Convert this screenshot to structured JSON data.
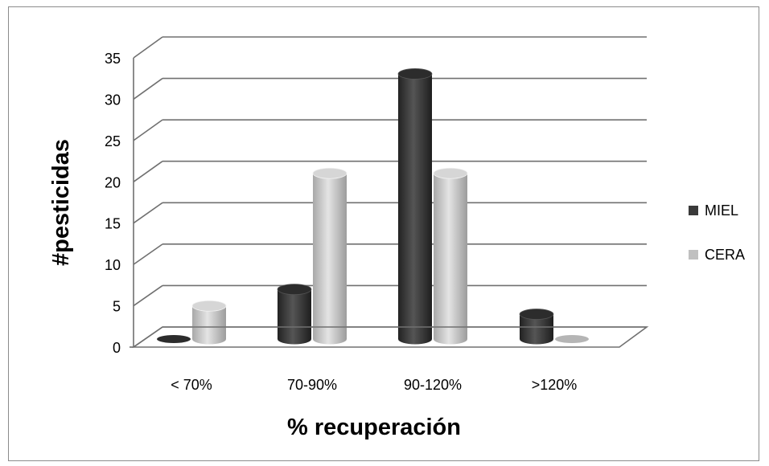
{
  "chart_data": {
    "type": "bar",
    "categories": [
      "< 70%",
      "70-90%",
      "90-120%",
      ">120%"
    ],
    "series": [
      {
        "name": "MIEL",
        "values": [
          0,
          6,
          32,
          3
        ],
        "color": "#3a3a3a"
      },
      {
        "name": "CERA",
        "values": [
          4,
          20,
          20,
          0
        ],
        "color": "#c0c0c0"
      }
    ],
    "xlabel": "% recuperación",
    "ylabel": "#pesticidas",
    "ylim": [
      0,
      35
    ],
    "yticks": [
      "0",
      "5",
      "10",
      "15",
      "20",
      "25",
      "30",
      "35"
    ],
    "grid": true,
    "legend_position": "right",
    "style": "3d-cylinder"
  }
}
